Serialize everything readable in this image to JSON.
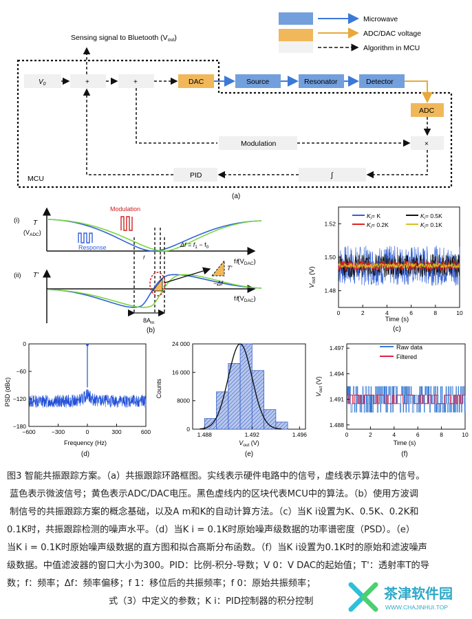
{
  "panel_a": {
    "legend": [
      "Microwave",
      "ADC/DAC voltage",
      "Algorithm in MCU"
    ],
    "sensing_label": "Sensing signal to Bluetooth (V",
    "sensing_sub": "out",
    "v0": "V",
    "v0_sub": "0",
    "plus": "+",
    "blocks": {
      "dac": "DAC",
      "source": "Source",
      "resonator": "Resonator",
      "detector": "Detector",
      "adc": "ADC",
      "modulation": "Modulation",
      "times": "×",
      "pid": "PID",
      "integral": "∫"
    },
    "mcu": "MCU",
    "label": "(a)",
    "colors": {
      "microwave": "#3b78d8",
      "adcdac": "#e8a83a",
      "algorithm": "#111111",
      "microwave_fill": "#5b8fd6",
      "adcdac_fill": "#f0b85a"
    }
  },
  "panel_b": {
    "label": "(b)",
    "i": "(i)",
    "ii": "(ii)",
    "T": "T",
    "T_unit": "(V",
    "T_unit_sub": "ADC",
    "Tprime": "T'",
    "modulation": "Modulation",
    "response": "Response",
    "delta_f": "Δf = f",
    "delta_f2": " − f",
    "f_axis": "f (V",
    "f_axis_sub": "DAC",
    "f1": "f",
    "f0": "f",
    "tri_T": "T'",
    "tri_f": "−Δf",
    "eight_am": "8A",
    "eight_am_sub": "m"
  },
  "panel_c": {
    "label": "(c)",
    "ylabel": "V",
    "ylabel_sub": "out",
    "ylabel_unit": " (V)",
    "xlabel": "Time (s)",
    "legend": [
      "K",
      "= K",
      "K",
      "= 0.5K",
      "K",
      "= 0.2K",
      "K",
      "= 0.1K"
    ],
    "chart_data": {
      "type": "line",
      "xlim": [
        0,
        10
      ],
      "ylim": [
        1.47,
        1.53
      ],
      "yticks": [
        1.48,
        1.5,
        1.52
      ],
      "xticks": [
        0,
        2,
        4,
        6,
        8,
        10
      ],
      "series": [
        {
          "name": "Ki = K",
          "center": 1.495,
          "spread": 0.012,
          "color": "#2f5fd8"
        },
        {
          "name": "Ki = 0.5K",
          "center": 1.495,
          "spread": 0.007,
          "color": "#111111"
        },
        {
          "name": "Ki = 0.2K",
          "center": 1.495,
          "spread": 0.003,
          "color": "#e02020"
        },
        {
          "name": "Ki = 0.1K",
          "center": 1.495,
          "spread": 0.0015,
          "color": "#d8c020"
        }
      ]
    }
  },
  "panel_d": {
    "label": "(d)",
    "ylabel": "PSD (dBc)",
    "xlabel": "Frequency (Hz)",
    "chart_data": {
      "type": "line",
      "xlim": [
        -600,
        600
      ],
      "ylim": [
        -180,
        0
      ],
      "xticks": [
        -600,
        -300,
        0,
        300,
        600
      ],
      "xtick_labels": [
        "−600",
        "−300",
        "0",
        "300",
        "600"
      ],
      "yticks": [
        -180,
        -120,
        -60,
        0
      ],
      "ytick_labels": [
        "−180",
        "−120",
        "−60",
        "0"
      ],
      "peak": {
        "x": 0,
        "y": -2
      },
      "noise_floor": -125,
      "color": "#1f4fd8"
    }
  },
  "panel_e": {
    "label": "(e)",
    "ylabel": "Counts",
    "xlabel": "V",
    "xlabel_sub": "out",
    "xlabel_unit": " (V)",
    "chart_data": {
      "type": "bar",
      "xlim": [
        1.487,
        1.4965
      ],
      "ylim": [
        0,
        24000
      ],
      "xticks": [
        1.488,
        1.492,
        1.496
      ],
      "xtick_labels": [
        "1.488",
        "1.492",
        "1.496"
      ],
      "yticks": [
        0,
        8000,
        16000,
        24000
      ],
      "ytick_labels": [
        "0",
        "8000",
        "16 000",
        "24 000"
      ],
      "bins": [
        1.4885,
        1.4895,
        1.4905,
        1.4915,
        1.4925,
        1.4935,
        1.4945
      ],
      "values": [
        3000,
        10500,
        18500,
        24000,
        16500,
        5500,
        2000
      ],
      "bin_width": 0.001,
      "fit": {
        "mean": 1.491,
        "sigma": 0.001,
        "peak": 24000
      }
    }
  },
  "panel_f": {
    "label": "(f)",
    "ylabel": "V",
    "ylabel_sub": "out",
    "ylabel_unit": " (V)",
    "xlabel": "Time (s)",
    "legend": [
      "Raw data",
      "Filtered"
    ],
    "chart_data": {
      "type": "line",
      "xlim": [
        0,
        10
      ],
      "ylim": [
        1.4875,
        1.4975
      ],
      "yticks": [
        1.488,
        1.491,
        1.494,
        1.497
      ],
      "xticks": [
        0,
        2,
        4,
        6,
        8,
        10
      ],
      "series": [
        {
          "name": "Raw data",
          "levels": [
            1.4895,
            1.4905,
            1.4915,
            1.4925
          ],
          "color": "#3a7bd5"
        },
        {
          "name": "Filtered",
          "levels": [
            1.4905,
            1.4915
          ],
          "color": "#e02040"
        }
      ]
    }
  },
  "caption": {
    "lines": [
      "图3 智能共振跟踪方案。（a）共振跟踪环路框图。实线表示硬件电路中的信号，虚线表示算法中的信号。",
      "蓝色表示微波信号；黄色表示ADC/DAC电压。黑色虚线内的区块代表MCU中的算法。（b）使用方波调",
      "制信号的共振跟踪方案的概念基础，以及A m和K的自动计算方法。（c）当K i设置为K、0.5K、0.2K和",
      "0.1K时，共振跟踪检测的噪声水平。（d）当K i = 0.1K时原始噪声级数据的功率谱密度（PSD）。（e）",
      "当K i = 0.1K时原始噪声级数据的直方图和拟合高斯分布函数。（f）当K i设置为0.1K时的原始和滤波噪声",
      "级数据。中值滤波器的窗口大小为300。PID：比例-积分-导数；V 0：V DAC的起始值；T'：透射率T的导",
      "数；f：频率；Δf：频率偏移；f 1：移位后的共振频率；f 0：原始共振频率；",
      "式（3）中定义的参数；K i：PID控制器的积分控制"
    ]
  },
  "watermark": {
    "title": "茶津软件园",
    "url": "WWW.CHAJINHUI.TOP"
  }
}
